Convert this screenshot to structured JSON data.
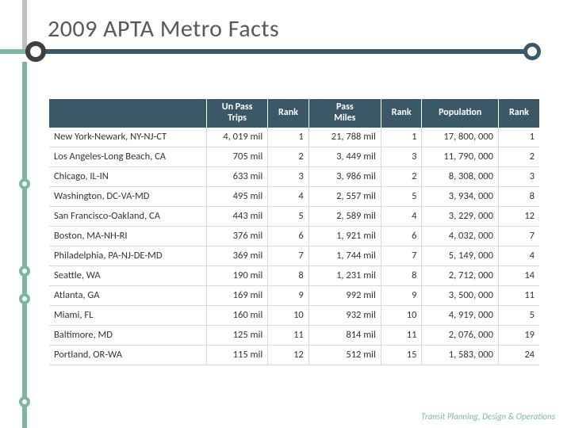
{
  "title": "2009 APTA Metro Facts",
  "footer": "Transit Planning, Design & Operations",
  "colors": {
    "dark": "#3b5868",
    "teal": "#7fb5a8",
    "gray": "#bfbfbf",
    "text": "#595959"
  },
  "table": {
    "columns": [
      {
        "key": "city",
        "label": "",
        "class": "city"
      },
      {
        "key": "trips",
        "label": "Un Pass\nTrips",
        "class": "num col-trips"
      },
      {
        "key": "r1",
        "label": "Rank",
        "class": "num col-rank"
      },
      {
        "key": "miles",
        "label": "Pass\nMiles",
        "class": "num col-miles"
      },
      {
        "key": "r2",
        "label": "Rank",
        "class": "num col-rank"
      },
      {
        "key": "pop",
        "label": "Population",
        "class": "num col-pop"
      },
      {
        "key": "r3",
        "label": "Rank",
        "class": "num col-rank"
      }
    ],
    "rows": [
      {
        "city": "New York-Newark, NY-NJ-CT",
        "trips": "4, 019 mil",
        "r1": "1",
        "miles": "21, 788 mil",
        "r2": "1",
        "pop": "17, 800, 000",
        "r3": "1"
      },
      {
        "city": "Los Angeles-Long Beach, CA",
        "trips": "705 mil",
        "r1": "2",
        "miles": "3, 449 mil",
        "r2": "3",
        "pop": "11, 790, 000",
        "r3": "2"
      },
      {
        "city": "Chicago, IL-IN",
        "trips": "633 mil",
        "r1": "3",
        "miles": "3, 986 mil",
        "r2": "2",
        "pop": "8, 308, 000",
        "r3": "3"
      },
      {
        "city": "Washington, DC-VA-MD",
        "trips": "495 mil",
        "r1": "4",
        "miles": "2, 557 mil",
        "r2": "5",
        "pop": "3, 934, 000",
        "r3": "8"
      },
      {
        "city": "San Francisco-Oakland, CA",
        "trips": "443 mil",
        "r1": "5",
        "miles": "2, 589 mil",
        "r2": "4",
        "pop": "3, 229, 000",
        "r3": "12"
      },
      {
        "city": "Boston, MA-NH-RI",
        "trips": "376 mil",
        "r1": "6",
        "miles": "1, 921 mil",
        "r2": "6",
        "pop": "4, 032, 000",
        "r3": "7"
      },
      {
        "city": "Philadelphia, PA-NJ-DE-MD",
        "trips": "369 mil",
        "r1": "7",
        "miles": "1, 744 mil",
        "r2": "7",
        "pop": "5, 149, 000",
        "r3": "4"
      },
      {
        "city": "Seattle, WA",
        "trips": "190 mil",
        "r1": "8",
        "miles": "1, 231 mil",
        "r2": "8",
        "pop": "2, 712, 000",
        "r3": "14"
      },
      {
        "city": "Atlanta, GA",
        "trips": "169 mil",
        "r1": "9",
        "miles": "992 mil",
        "r2": "9",
        "pop": "3, 500, 000",
        "r3": "11"
      },
      {
        "city": "Miami, FL",
        "trips": "160 mil",
        "r1": "10",
        "miles": "932 mil",
        "r2": "10",
        "pop": "4, 919, 000",
        "r3": "5"
      },
      {
        "city": "Baltimore, MD",
        "trips": "125 mil",
        "r1": "11",
        "miles": "814 mil",
        "r2": "11",
        "pop": "2, 076, 000",
        "r3": "19"
      },
      {
        "city": "Portland, OR-WA",
        "trips": "115 mil",
        "r1": "12",
        "miles": "512 mil",
        "r2": "15",
        "pop": "1, 583, 000",
        "r3": "24"
      }
    ]
  }
}
